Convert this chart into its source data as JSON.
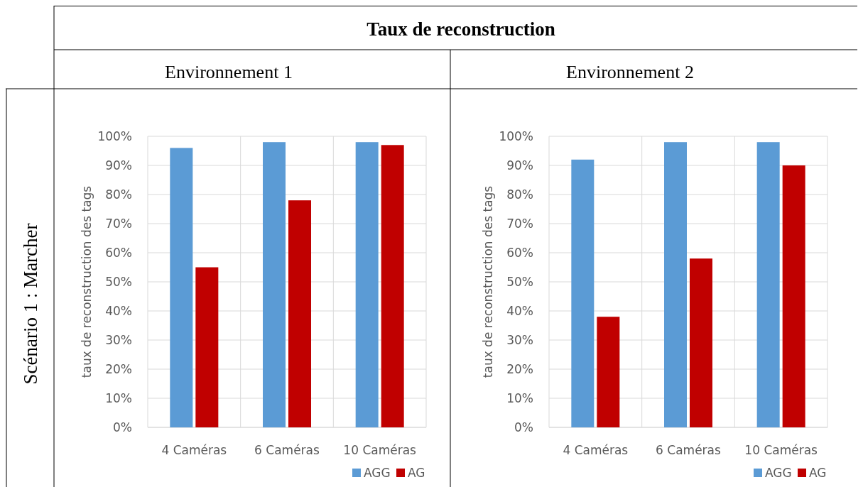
{
  "chart_data": [
    {
      "type": "bar",
      "title": "Environnement 1",
      "annotations": [
        "Taux de reconstruction",
        "Scénario 1 : Marcher"
      ],
      "ylabel": "taux de reconstruction des tags",
      "categories": [
        "4 Caméras",
        "6 Caméras",
        "10 Caméras"
      ],
      "series": [
        {
          "name": "AGG",
          "color": "#5b9bd5",
          "values": [
            96,
            98,
            98
          ]
        },
        {
          "name": "AG",
          "color": "#c00000",
          "values": [
            55,
            78,
            97
          ]
        }
      ],
      "ylim": [
        0,
        100
      ],
      "yticks": [
        {
          "value": 0,
          "label": "0%"
        },
        {
          "value": 10,
          "label": "10%"
        },
        {
          "value": 20,
          "label": "20%"
        },
        {
          "value": 30,
          "label": "30%"
        },
        {
          "value": 40,
          "label": "40%"
        },
        {
          "value": 50,
          "label": "50%"
        },
        {
          "value": 60,
          "label": "60%"
        },
        {
          "value": 70,
          "label": "70%"
        },
        {
          "value": 80,
          "label": "80%"
        },
        {
          "value": 90,
          "label": "90%"
        },
        {
          "value": 100,
          "label": "100%"
        }
      ],
      "grid": true,
      "legend": "bottom right"
    },
    {
      "type": "bar",
      "title": "Environnement 2",
      "ylabel": "taux de reconstruction des tags",
      "categories": [
        "4 Caméras",
        "6 Caméras",
        "10 Caméras"
      ],
      "series": [
        {
          "name": "AGG",
          "color": "#5b9bd5",
          "values": [
            92,
            98,
            98
          ]
        },
        {
          "name": "AG",
          "color": "#c00000",
          "values": [
            38,
            58,
            90
          ]
        }
      ],
      "ylim": [
        0,
        100
      ],
      "yticks": [
        {
          "value": 0,
          "label": "0%"
        },
        {
          "value": 10,
          "label": "10%"
        },
        {
          "value": 20,
          "label": "20%"
        },
        {
          "value": 30,
          "label": "30%"
        },
        {
          "value": 40,
          "label": "40%"
        },
        {
          "value": 50,
          "label": "50%"
        },
        {
          "value": 60,
          "label": "60%"
        },
        {
          "value": 70,
          "label": "70%"
        },
        {
          "value": 80,
          "label": "80%"
        },
        {
          "value": 90,
          "label": "90%"
        },
        {
          "value": 100,
          "label": "100%"
        }
      ],
      "grid": true,
      "legend": "bottom right"
    }
  ]
}
